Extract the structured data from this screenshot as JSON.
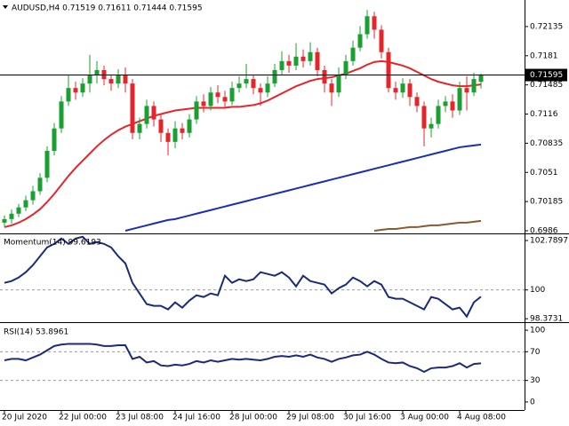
{
  "chart_data": [
    {
      "type": "candlestick",
      "title": "AUDUSD,H4  0.71519 0.71611 0.71444 0.71595",
      "categories": [
        "20 Jul 2020",
        null,
        null,
        null,
        null,
        null,
        null,
        null,
        "22 Jul 00:00",
        null,
        null,
        null,
        null,
        null,
        null,
        null,
        "23 Jul 08:00",
        null,
        null,
        null,
        null,
        null,
        null,
        null,
        "24 Jul 16:00",
        null,
        null,
        null,
        null,
        null,
        null,
        null,
        "28 Jul 00:00",
        null,
        null,
        null,
        null,
        null,
        null,
        null,
        "29 Jul 08:00",
        null,
        null,
        null,
        null,
        null,
        null,
        null,
        "30 Jul 16:00",
        null,
        null,
        null,
        null,
        null,
        null,
        null,
        "3 Aug 00:00",
        null,
        null,
        null,
        null,
        null,
        null,
        null,
        "4 Aug 08:00",
        null,
        null,
        null
      ],
      "open": [
        0.6995,
        0.6999,
        0.7005,
        0.7012,
        0.702,
        0.703,
        0.7045,
        0.7075,
        0.71,
        0.713,
        0.7145,
        0.714,
        0.715,
        0.716,
        0.7165,
        0.7155,
        0.715,
        0.716,
        0.715,
        0.7095,
        0.7105,
        0.7125,
        0.711,
        0.7095,
        0.7085,
        0.71,
        0.7095,
        0.711,
        0.713,
        0.7125,
        0.714,
        0.7135,
        0.713,
        0.7145,
        0.715,
        0.7155,
        0.7145,
        0.714,
        0.715,
        0.7165,
        0.7175,
        0.717,
        0.718,
        0.7175,
        0.7185,
        0.7165,
        0.715,
        0.714,
        0.716,
        0.7175,
        0.719,
        0.7205,
        0.7225,
        0.721,
        0.7185,
        0.7145,
        0.714,
        0.715,
        0.7135,
        0.7125,
        0.71,
        0.7105,
        0.7125,
        0.713,
        0.712,
        0.7145,
        0.714,
        0.71519
      ],
      "high": [
        0.7003,
        0.701,
        0.7016,
        0.7025,
        0.7036,
        0.705,
        0.708,
        0.7106,
        0.7136,
        0.716,
        0.7152,
        0.7156,
        0.7182,
        0.7175,
        0.717,
        0.716,
        0.7166,
        0.7168,
        0.7155,
        0.7112,
        0.7132,
        0.713,
        0.7115,
        0.71,
        0.7108,
        0.7106,
        0.7116,
        0.7136,
        0.7138,
        0.7146,
        0.7148,
        0.7142,
        0.7152,
        0.7158,
        0.7172,
        0.716,
        0.715,
        0.7158,
        0.7172,
        0.7186,
        0.7182,
        0.7195,
        0.7188,
        0.7196,
        0.719,
        0.717,
        0.7155,
        0.7168,
        0.7182,
        0.7198,
        0.7214,
        0.7232,
        0.723,
        0.7215,
        0.719,
        0.7152,
        0.7156,
        0.7155,
        0.714,
        0.713,
        0.7112,
        0.7132,
        0.7136,
        0.7138,
        0.7152,
        0.7158,
        0.7162,
        0.71611
      ],
      "low": [
        0.699,
        0.6994,
        0.7001,
        0.7008,
        0.7015,
        0.7026,
        0.704,
        0.707,
        0.7095,
        0.7125,
        0.7132,
        0.7135,
        0.714,
        0.715,
        0.7148,
        0.7142,
        0.7145,
        0.714,
        0.7088,
        0.7088,
        0.71,
        0.7102,
        0.7085,
        0.707,
        0.7078,
        0.7088,
        0.709,
        0.7105,
        0.7118,
        0.712,
        0.7128,
        0.7124,
        0.7126,
        0.714,
        0.7145,
        0.7138,
        0.7125,
        0.7135,
        0.7146,
        0.716,
        0.7162,
        0.7165,
        0.7168,
        0.717,
        0.7158,
        0.714,
        0.7125,
        0.7135,
        0.7155,
        0.717,
        0.7186,
        0.72,
        0.72,
        0.7178,
        0.714,
        0.7132,
        0.7134,
        0.7125,
        0.7118,
        0.708,
        0.709,
        0.71,
        0.7118,
        0.7112,
        0.7115,
        0.712,
        0.7136,
        0.71444
      ],
      "close": [
        0.6999,
        0.7005,
        0.7012,
        0.702,
        0.703,
        0.7045,
        0.7075,
        0.71,
        0.713,
        0.7145,
        0.714,
        0.715,
        0.716,
        0.7165,
        0.7155,
        0.715,
        0.716,
        0.715,
        0.7095,
        0.7105,
        0.7125,
        0.711,
        0.7095,
        0.7085,
        0.71,
        0.7095,
        0.711,
        0.713,
        0.7125,
        0.714,
        0.7135,
        0.713,
        0.7145,
        0.715,
        0.7155,
        0.7145,
        0.714,
        0.715,
        0.7165,
        0.7175,
        0.717,
        0.718,
        0.7175,
        0.7185,
        0.7165,
        0.715,
        0.714,
        0.716,
        0.7175,
        0.719,
        0.7205,
        0.7225,
        0.721,
        0.7185,
        0.7145,
        0.714,
        0.715,
        0.7135,
        0.7125,
        0.71,
        0.7105,
        0.7125,
        0.713,
        0.712,
        0.7145,
        0.714,
        0.7155,
        0.71595
      ],
      "up_color": "#1aa032",
      "down_color": "#e3262b",
      "series": [
        {
          "color": "#e3262b",
          "values": [
            0.699,
            0.6992,
            0.6995,
            0.6999,
            0.7004,
            0.701,
            0.7018,
            0.7027,
            0.7037,
            0.7047,
            0.7056,
            0.7064,
            0.7072,
            0.708,
            0.7087,
            0.7093,
            0.7098,
            0.7102,
            0.7105,
            0.7108,
            0.7111,
            0.7114,
            0.7116,
            0.7118,
            0.712,
            0.7121,
            0.7122,
            0.7123,
            0.7123,
            0.7123,
            0.7123,
            0.7123,
            0.7124,
            0.7124,
            0.7125,
            0.7126,
            0.7128,
            0.7131,
            0.7135,
            0.7139,
            0.7143,
            0.7147,
            0.715,
            0.7153,
            0.7155,
            0.7156,
            0.7157,
            0.7159,
            0.7161,
            0.7164,
            0.7167,
            0.7171,
            0.7174,
            0.7175,
            0.7174,
            0.7172,
            0.717,
            0.7167,
            0.7163,
            0.7159,
            0.7155,
            0.7152,
            0.715,
            0.7148,
            0.7147,
            0.7147,
            0.7148,
            0.7149
          ]
        },
        {
          "color": "#1c2fb0",
          "values": [
            null,
            null,
            null,
            null,
            null,
            null,
            null,
            null,
            null,
            null,
            null,
            null,
            null,
            null,
            null,
            null,
            null,
            0.6986,
            0.6988,
            0.699,
            0.6992,
            0.6994,
            0.6996,
            0.6998,
            0.6999,
            0.7001,
            0.7003,
            0.7005,
            0.7007,
            0.7009,
            0.7011,
            0.7013,
            0.7015,
            0.7017,
            0.7019,
            0.7021,
            0.7023,
            0.7025,
            0.7027,
            0.7029,
            0.7031,
            0.7033,
            0.7035,
            0.7037,
            0.7039,
            0.7041,
            0.7043,
            0.7045,
            0.7047,
            0.7049,
            0.7051,
            0.7053,
            0.7055,
            0.7057,
            0.7059,
            0.7061,
            0.7063,
            0.7065,
            0.7067,
            0.7069,
            0.7071,
            0.7073,
            0.7075,
            0.7077,
            0.7079,
            0.708,
            0.7081,
            0.7082
          ]
        },
        {
          "color": "#8b5a2b",
          "values": [
            null,
            null,
            null,
            null,
            null,
            null,
            null,
            null,
            null,
            null,
            null,
            null,
            null,
            null,
            null,
            null,
            null,
            null,
            null,
            null,
            null,
            null,
            null,
            null,
            null,
            null,
            null,
            null,
            null,
            null,
            null,
            null,
            null,
            null,
            null,
            null,
            null,
            null,
            null,
            null,
            null,
            null,
            null,
            null,
            null,
            null,
            null,
            null,
            null,
            null,
            null,
            null,
            0.6986,
            0.6987,
            0.6988,
            0.6988,
            0.6989,
            0.699,
            0.699,
            0.6991,
            0.6992,
            0.6992,
            0.6993,
            0.6994,
            0.6995,
            0.6995,
            0.6996,
            0.6997
          ]
        }
      ],
      "ylim": [
        0.6984,
        0.72431
      ],
      "yticks": [
        0.72135,
        0.7181,
        0.71485,
        0.7116,
        0.70835,
        0.7051,
        0.70185,
        0.6986
      ]
    },
    {
      "type": "line",
      "title": "Momentum(14) 99.6193",
      "color": "#1c2a7a",
      "values": [
        100.4,
        100.5,
        100.7,
        101.0,
        101.4,
        101.9,
        102.4,
        102.6,
        102.9,
        102.6,
        102.9,
        103.0,
        102.6,
        102.7,
        102.6,
        102.4,
        101.9,
        101.5,
        100.4,
        99.8,
        99.2,
        99.1,
        99.1,
        98.9,
        99.3,
        99.0,
        99.4,
        99.7,
        99.6,
        99.8,
        99.7,
        100.8,
        100.4,
        100.6,
        100.5,
        100.6,
        101.0,
        100.9,
        100.8,
        101.0,
        100.7,
        100.2,
        100.8,
        100.5,
        100.4,
        100.3,
        99.8,
        100.1,
        100.3,
        100.7,
        100.5,
        100.2,
        100.5,
        100.3,
        99.6,
        99.5,
        99.5,
        99.3,
        99.1,
        98.9,
        99.6,
        99.5,
        99.2,
        98.9,
        99.0,
        98.5,
        99.3,
        99.6193
      ],
      "ylim": [
        98.23,
        103.14
      ],
      "yticks": [
        102.7897,
        100,
        98.3731
      ],
      "levels": [
        100
      ]
    },
    {
      "type": "line",
      "title": "RSI(14) 53.8961",
      "color": "#1c2a7a",
      "values": [
        58,
        60,
        60,
        58,
        62,
        66,
        72,
        78,
        80,
        81,
        81,
        81,
        81,
        80,
        78,
        78,
        79,
        79,
        60,
        63,
        55,
        57,
        51,
        50,
        52,
        51,
        53,
        57,
        55,
        58,
        56,
        58,
        60,
        59,
        60,
        59,
        58,
        60,
        63,
        64,
        63,
        65,
        63,
        66,
        62,
        60,
        56,
        60,
        62,
        65,
        66,
        70,
        66,
        60,
        55,
        54,
        55,
        50,
        47,
        42,
        47,
        48,
        48,
        50,
        54,
        48,
        53,
        53.8961
      ],
      "ylim": [
        -11.25,
        110
      ],
      "yticks": [
        100,
        70,
        30,
        0
      ],
      "levels": [
        70,
        30
      ]
    }
  ]
}
